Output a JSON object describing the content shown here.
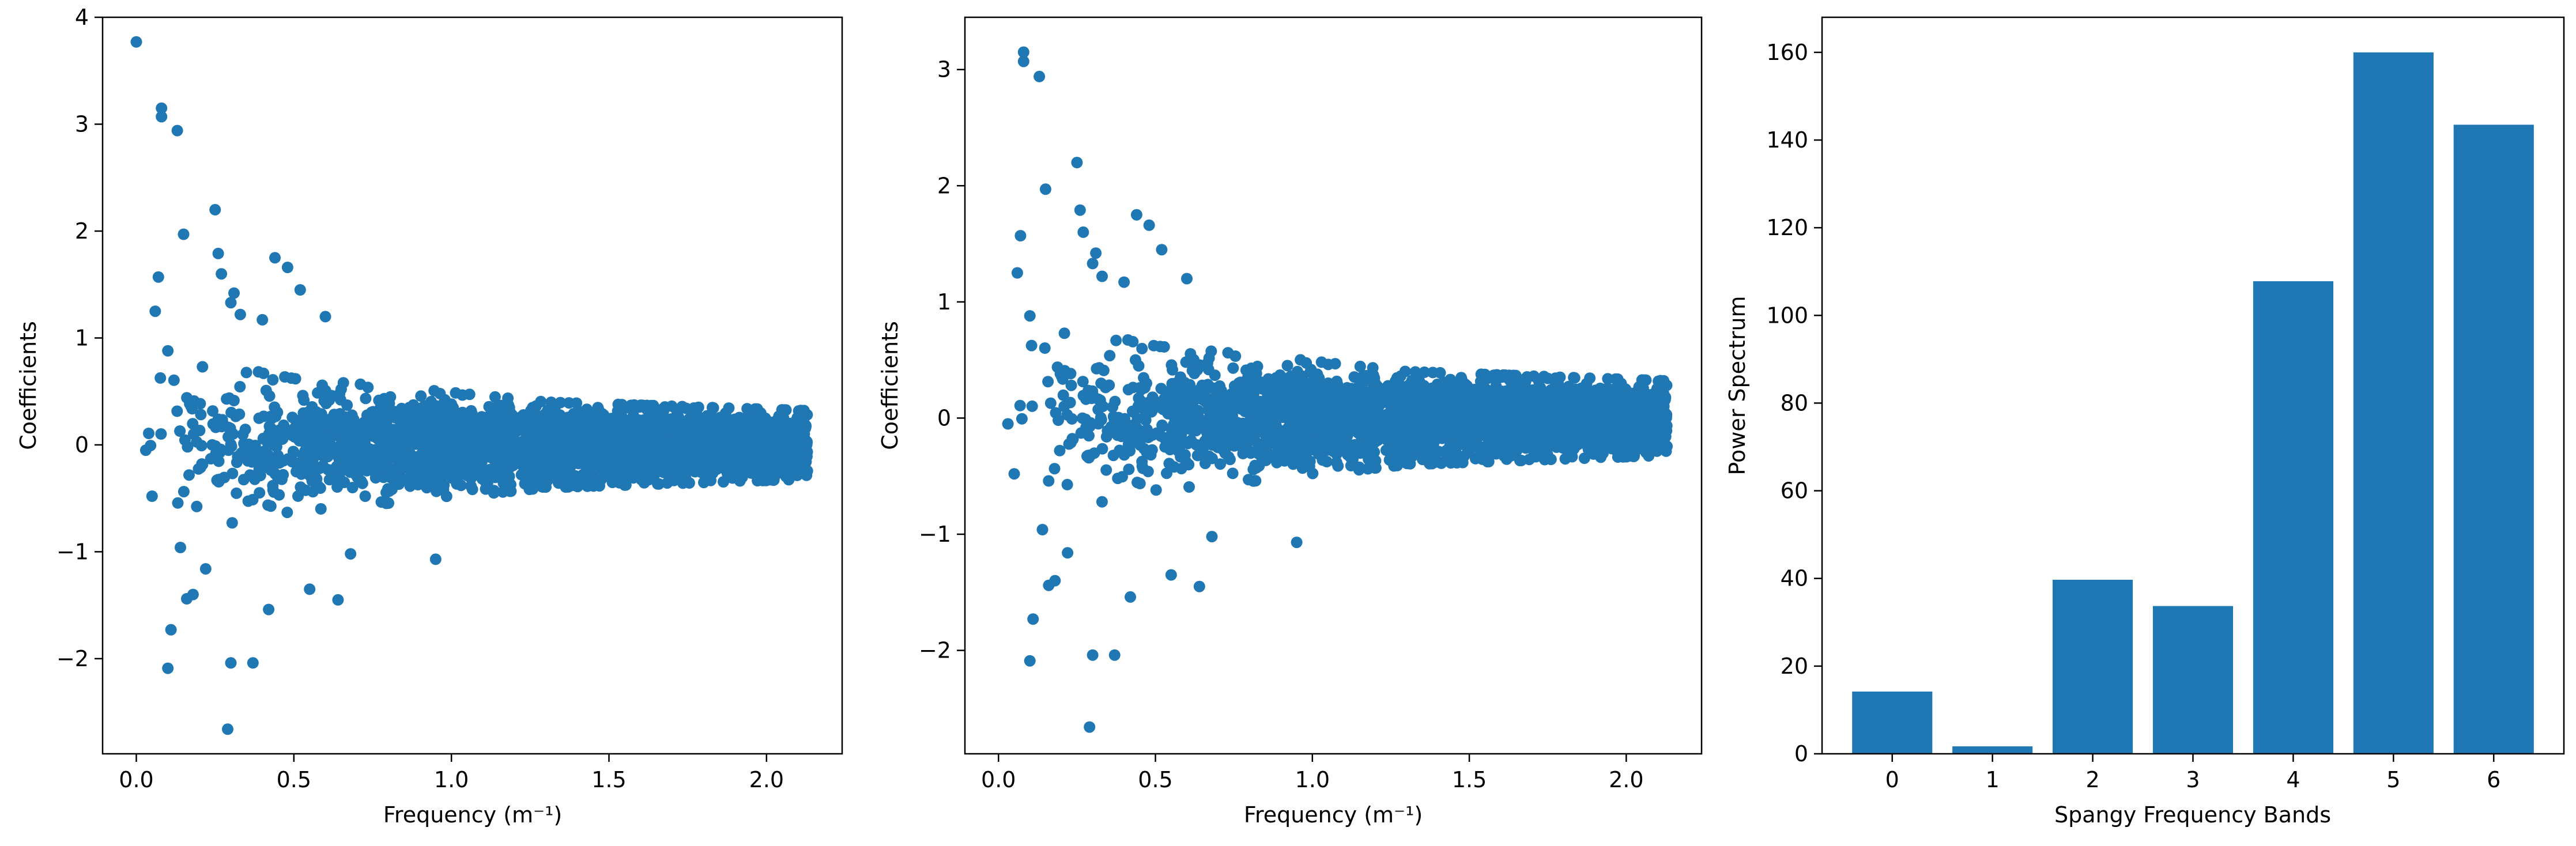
{
  "colors": {
    "series": "#1f77b4",
    "axes": "#000000",
    "background": "#ffffff"
  },
  "chart_data": [
    {
      "type": "scatter",
      "xlabel": "Frequency (m⁻¹)",
      "ylabel": "Coefficients",
      "xlim": [
        -0.107,
        2.24
      ],
      "ylim": [
        -2.89,
        4.0
      ],
      "xticks": [
        0.0,
        0.5,
        1.0,
        1.5,
        2.0
      ],
      "xtick_labels": [
        "0.0",
        "0.5",
        "1.0",
        "1.5",
        "2.0"
      ],
      "yticks": [
        -2,
        -1,
        0,
        1,
        2,
        3,
        4
      ],
      "ytick_labels": [
        "−2",
        "−1",
        "0",
        "1",
        "2",
        "3",
        "4"
      ],
      "grid": false,
      "points": [
        [
          0.0,
          3.77
        ],
        [
          0.03,
          -0.05
        ],
        [
          0.05,
          -0.48
        ],
        [
          0.06,
          1.25
        ],
        [
          0.07,
          1.57
        ],
        [
          0.08,
          3.15
        ],
        [
          0.08,
          3.07
        ],
        [
          0.1,
          0.88
        ],
        [
          0.1,
          -2.09
        ],
        [
          0.11,
          -1.73
        ],
        [
          0.13,
          2.94
        ],
        [
          0.14,
          -0.96
        ],
        [
          0.15,
          1.97
        ],
        [
          0.16,
          -1.44
        ],
        [
          0.18,
          -1.4
        ],
        [
          0.21,
          0.73
        ],
        [
          0.22,
          -1.16
        ],
        [
          0.25,
          2.2
        ],
        [
          0.26,
          1.79
        ],
        [
          0.27,
          1.6
        ],
        [
          0.29,
          -2.66
        ],
        [
          0.3,
          -2.04
        ],
        [
          0.3,
          1.33
        ],
        [
          0.31,
          1.42
        ],
        [
          0.33,
          1.22
        ],
        [
          0.37,
          -2.04
        ],
        [
          0.4,
          1.17
        ],
        [
          0.42,
          -1.54
        ],
        [
          0.44,
          1.75
        ],
        [
          0.48,
          1.66
        ],
        [
          0.52,
          1.45
        ],
        [
          0.55,
          -1.35
        ],
        [
          0.6,
          1.2
        ],
        [
          0.64,
          -1.45
        ],
        [
          0.68,
          -1.02
        ],
        [
          0.95,
          -1.07
        ]
      ],
      "cloud": {
        "count": 3300,
        "x_range": [
          0.0,
          2.13
        ],
        "amplitude_by_x": [
          [
            0.0,
            0.9
          ],
          [
            0.5,
            0.62
          ],
          [
            0.9,
            0.52
          ],
          [
            1.3,
            0.4
          ],
          [
            2.13,
            0.32
          ]
        ]
      }
    },
    {
      "type": "scatter",
      "xlabel": "Frequency (m⁻¹)",
      "ylabel": "Coefficients",
      "xlim": [
        -0.107,
        2.24
      ],
      "ylim": [
        -2.89,
        3.45
      ],
      "xticks": [
        0.0,
        0.5,
        1.0,
        1.5,
        2.0
      ],
      "xtick_labels": [
        "0.0",
        "0.5",
        "1.0",
        "1.5",
        "2.0"
      ],
      "yticks": [
        -2,
        -1,
        0,
        1,
        2,
        3
      ],
      "ytick_labels": [
        "−2",
        "−1",
        "0",
        "1",
        "2",
        "3"
      ],
      "grid": false,
      "points": [
        [
          0.03,
          -0.05
        ],
        [
          0.05,
          -0.48
        ],
        [
          0.06,
          1.25
        ],
        [
          0.07,
          1.57
        ],
        [
          0.08,
          3.15
        ],
        [
          0.08,
          3.07
        ],
        [
          0.1,
          0.88
        ],
        [
          0.1,
          -2.09
        ],
        [
          0.11,
          -1.73
        ],
        [
          0.13,
          2.94
        ],
        [
          0.14,
          -0.96
        ],
        [
          0.15,
          1.97
        ],
        [
          0.16,
          -1.44
        ],
        [
          0.18,
          -1.4
        ],
        [
          0.21,
          0.73
        ],
        [
          0.22,
          -1.16
        ],
        [
          0.25,
          2.2
        ],
        [
          0.26,
          1.79
        ],
        [
          0.27,
          1.6
        ],
        [
          0.29,
          -2.66
        ],
        [
          0.3,
          -2.04
        ],
        [
          0.3,
          1.33
        ],
        [
          0.31,
          1.42
        ],
        [
          0.33,
          1.22
        ],
        [
          0.37,
          -2.04
        ],
        [
          0.4,
          1.17
        ],
        [
          0.42,
          -1.54
        ],
        [
          0.44,
          1.75
        ],
        [
          0.48,
          1.66
        ],
        [
          0.52,
          1.45
        ],
        [
          0.55,
          -1.35
        ],
        [
          0.6,
          1.2
        ],
        [
          0.64,
          -1.45
        ],
        [
          0.68,
          -1.02
        ],
        [
          0.95,
          -1.07
        ]
      ],
      "cloud": {
        "count": 3300,
        "x_range": [
          0.03,
          2.13
        ],
        "amplitude_by_x": [
          [
            0.03,
            0.9
          ],
          [
            0.5,
            0.62
          ],
          [
            0.9,
            0.52
          ],
          [
            1.3,
            0.4
          ],
          [
            2.13,
            0.32
          ]
        ]
      }
    },
    {
      "type": "bar",
      "xlabel": "Spangy Frequency Bands",
      "ylabel": "Power Spectrum",
      "categories": [
        "0",
        "1",
        "2",
        "3",
        "4",
        "5",
        "6"
      ],
      "values": [
        14.2,
        1.7,
        39.7,
        33.7,
        107.8,
        160.0,
        143.5
      ],
      "xlim": [
        -0.7,
        6.7
      ],
      "ylim": [
        0,
        168
      ],
      "yticks": [
        0,
        20,
        40,
        60,
        80,
        100,
        120,
        140,
        160
      ],
      "ytick_labels": [
        "0",
        "20",
        "40",
        "60",
        "80",
        "100",
        "120",
        "140",
        "160"
      ],
      "grid": false
    }
  ]
}
